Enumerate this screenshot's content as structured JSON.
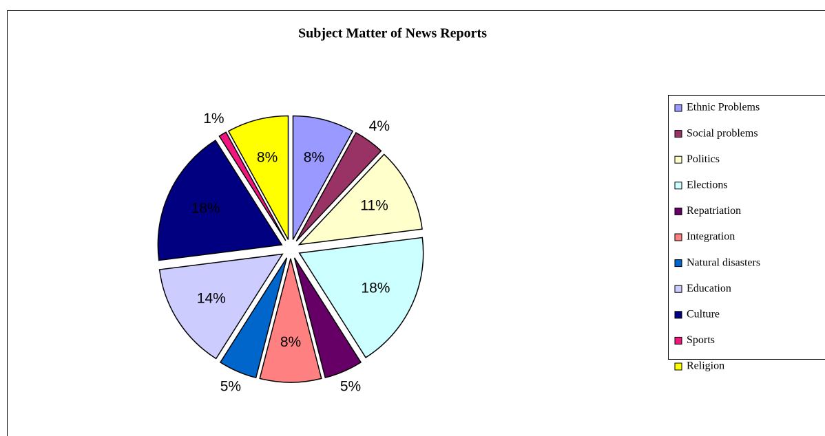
{
  "chart_data": {
    "type": "pie",
    "title": "Subject Matter of News Reports",
    "categories": [
      "Ethnic Problems",
      "Social problems",
      "Politics",
      "Elections",
      "Repatriation",
      "Integration",
      "Natural disasters",
      "Education",
      "Culture",
      "Sports",
      "Religion"
    ],
    "values": [
      8,
      4,
      11,
      18,
      5,
      8,
      5,
      14,
      18,
      1,
      8
    ],
    "value_labels": [
      "8%",
      "4%",
      "11%",
      "18%",
      "5%",
      "8%",
      "5%",
      "14%",
      "18%",
      "1%",
      "8%"
    ],
    "colors": [
      "#9999FF",
      "#993366",
      "#FFFFCC",
      "#CCFFFF",
      "#660066",
      "#FF8080",
      "#0066CC",
      "#CCCCFF",
      "#000080",
      "#F0167E",
      "#FFFF00"
    ],
    "legend": "right"
  }
}
